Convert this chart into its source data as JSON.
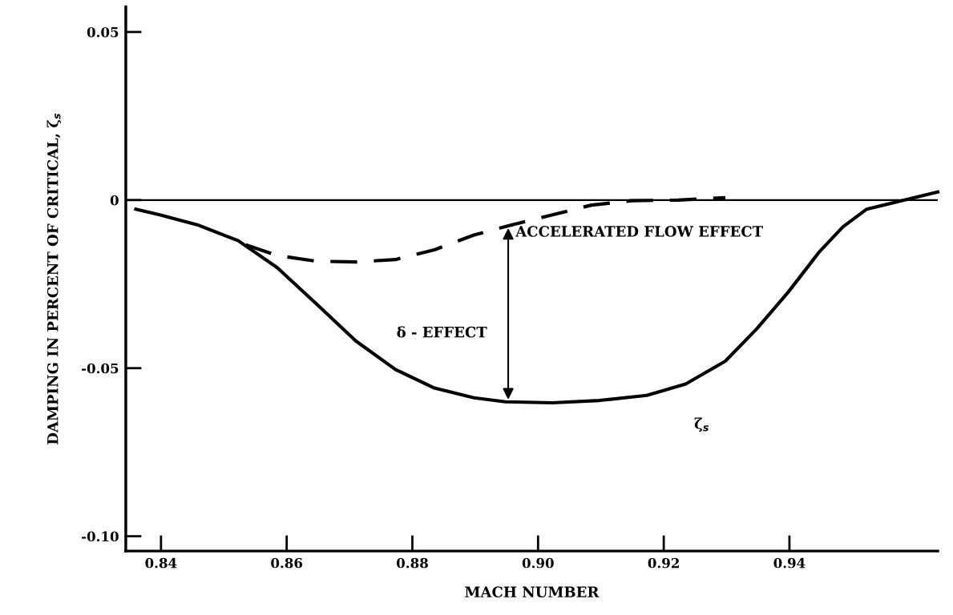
{
  "chart_data": {
    "type": "line",
    "xlabel": "MACH NUMBER",
    "ylabel": "DAMPING IN PERCENT OF CRITICAL, ζ$_{s}$",
    "xlim": [
      0.8344,
      0.9636
    ],
    "ylim": [
      -0.1044,
      0.0575
    ],
    "xticks": [
      0.84,
      0.86,
      0.88,
      {
        "value": 0.9,
        "label": "0.90"
      },
      0.92,
      0.94
    ],
    "yticks": [
      0.05,
      0,
      -0.05,
      {
        "value": -0.1,
        "label": "-0.10"
      }
    ],
    "grid": false,
    "marker": "none",
    "ref_lines": [
      {
        "axis": "y",
        "value": 0,
        "color": "#000000",
        "line_style": "solid"
      }
    ],
    "series": [
      {
        "color": "#000000",
        "line_style": "solid",
        "x": [
          0.836,
          0.8398,
          0.846,
          0.8523,
          0.8585,
          0.8648,
          0.871,
          0.8773,
          0.8835,
          0.8898,
          0.8948,
          0.9023,
          0.9098,
          0.9173,
          0.9235,
          0.9298,
          0.9348,
          0.9398,
          0.9448,
          0.9485,
          0.9523,
          0.9636
        ],
        "values": [
          -0.0027,
          -0.0044,
          -0.0075,
          -0.0121,
          -0.0201,
          -0.031,
          -0.0419,
          -0.0504,
          -0.0559,
          -0.0588,
          -0.06,
          -0.0603,
          -0.0596,
          -0.0581,
          -0.0547,
          -0.0479,
          -0.0383,
          -0.0274,
          -0.0153,
          -0.008,
          -0.0027,
          0.0024
        ]
      },
      {
        "color": "#000000",
        "line_style": "dashed",
        "x": [
          0.8535,
          0.8585,
          0.8648,
          0.871,
          0.8773,
          0.8835,
          0.8898,
          0.896,
          0.9023,
          0.9085,
          0.9148,
          0.9223,
          0.9298
        ],
        "values": [
          -0.0133,
          -0.0165,
          -0.0182,
          -0.0184,
          -0.0177,
          -0.0148,
          -0.0104,
          -0.0073,
          -0.0044,
          -0.0015,
          -0.0002,
          0.0,
          0.0007
        ]
      }
    ],
    "annotations": [
      "ACCELERATED FLOW EFFECT",
      "δ - EFFECT",
      "ζ$_{s}$"
    ]
  }
}
